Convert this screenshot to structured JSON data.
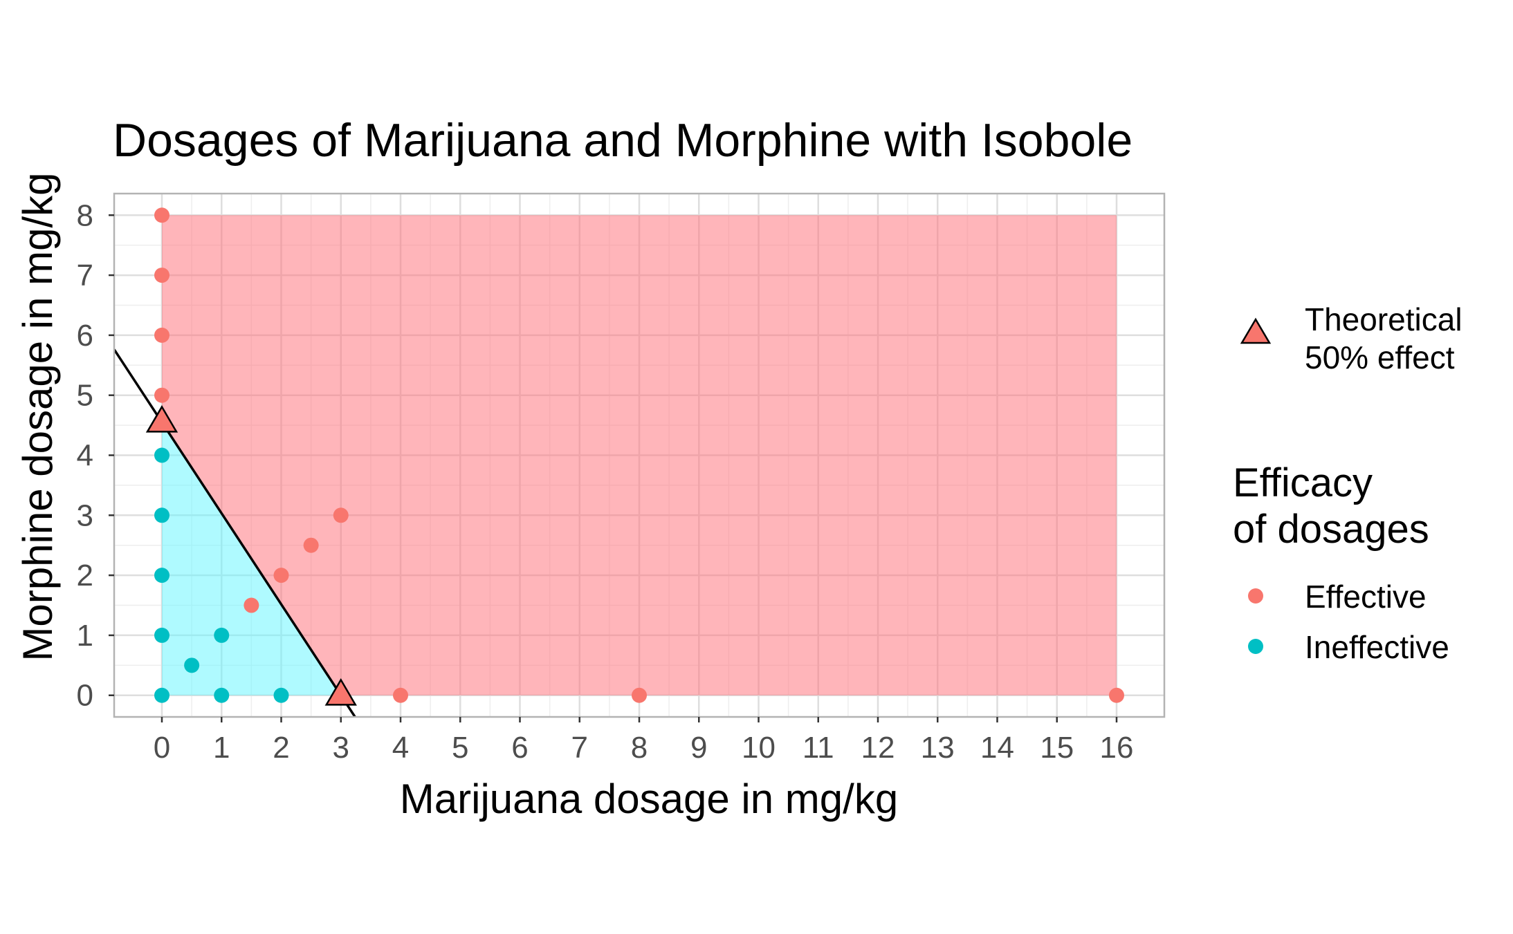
{
  "chart_data": {
    "type": "scatter",
    "title": "Dosages of Marijuana and Morphine with Isobole",
    "xlabel": "Marijuana dosage in mg/kg",
    "ylabel": "Morphine dosage in mg/kg",
    "xlim": [
      -0.8,
      16.8
    ],
    "ylim": [
      -0.36,
      8.36
    ],
    "x_ticks": [
      "0",
      "1",
      "2",
      "3",
      "4",
      "5",
      "6",
      "7",
      "8",
      "9",
      "10",
      "11",
      "12",
      "13",
      "14",
      "15",
      "16"
    ],
    "y_ticks": [
      "0",
      "1",
      "2",
      "3",
      "4",
      "5",
      "6",
      "7",
      "8"
    ],
    "grid": true,
    "colors": {
      "effective": "#F8766D",
      "ineffective": "#00BFC4",
      "effective_region": "#FF6B75",
      "ineffective_region": "#5FF5FF",
      "isobole": "#000000"
    },
    "regions": [
      {
        "name": "effective region",
        "polygon": [
          [
            0,
            4.55
          ],
          [
            0,
            8
          ],
          [
            16,
            8
          ],
          [
            16,
            0
          ],
          [
            3,
            0
          ]
        ]
      },
      {
        "name": "ineffective region",
        "polygon": [
          [
            0,
            0
          ],
          [
            0,
            4.55
          ],
          [
            3,
            0
          ]
        ]
      }
    ],
    "isobole": {
      "x_intercept": 3,
      "y_intercept": 4.55
    },
    "series": [
      {
        "name": "Effective",
        "points": [
          [
            0,
            8
          ],
          [
            0,
            7
          ],
          [
            0,
            6
          ],
          [
            0,
            5
          ],
          [
            3,
            3
          ],
          [
            2.5,
            2.5
          ],
          [
            2,
            2
          ],
          [
            1.5,
            1.5
          ],
          [
            4,
            0
          ],
          [
            8,
            0
          ],
          [
            16,
            0
          ]
        ]
      },
      {
        "name": "Ineffective",
        "points": [
          [
            0,
            4
          ],
          [
            0,
            3
          ],
          [
            0,
            2
          ],
          [
            0,
            1
          ],
          [
            0,
            0
          ],
          [
            0.5,
            0.5
          ],
          [
            1,
            1
          ],
          [
            1,
            0
          ],
          [
            2,
            0
          ]
        ]
      },
      {
        "name": "Theoretical 50% effect",
        "points": [
          [
            0,
            4.55
          ],
          [
            3,
            0
          ]
        ]
      }
    ],
    "legend": {
      "position": "right",
      "theoretical_label": [
        "Theoretical",
        "50% effect"
      ],
      "title": [
        "Efficacy",
        "of dosages"
      ],
      "entries": [
        "Effective",
        "Ineffective"
      ]
    }
  }
}
